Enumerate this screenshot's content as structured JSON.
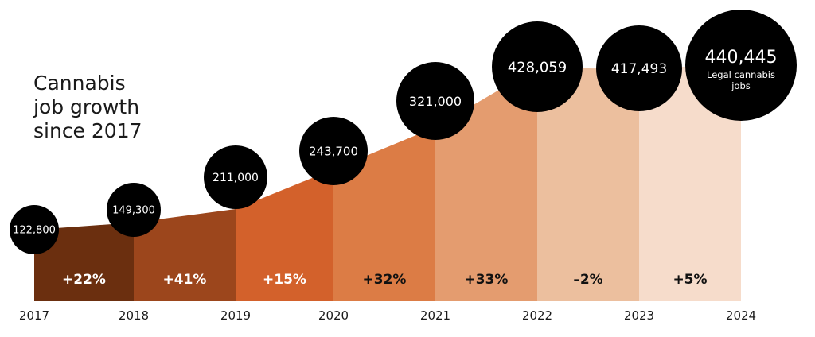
{
  "chart_data": {
    "type": "area",
    "title": "Cannabis\njob growth\nsince 2017",
    "categories": [
      "2017",
      "2018",
      "2019",
      "2020",
      "2021",
      "2022",
      "2023",
      "2024"
    ],
    "values": [
      122800,
      149300,
      211000,
      243700,
      321000,
      428059,
      417493,
      440445
    ],
    "value_labels": [
      "122,800",
      "149,300",
      "211,000",
      "243,700",
      "321,000",
      "428,059",
      "417,493",
      "440,445"
    ],
    "final_label": "Legal cannabis\njobs",
    "segment_changes": [
      "+22%",
      "+41%",
      "+15%",
      "+32%",
      "+33%",
      "–2%",
      "+5%"
    ],
    "segment_colors": [
      "#6b2f0f",
      "#9c461c",
      "#d3612b",
      "#dc7c45",
      "#e49c6f",
      "#ecbf9e",
      "#f6dccb"
    ],
    "segment_label_colors": [
      "#ffffff",
      "#ffffff",
      "#ffffff",
      "#111111",
      "#111111",
      "#111111",
      "#111111"
    ],
    "bubble_color": "#000000",
    "grid": false
  }
}
